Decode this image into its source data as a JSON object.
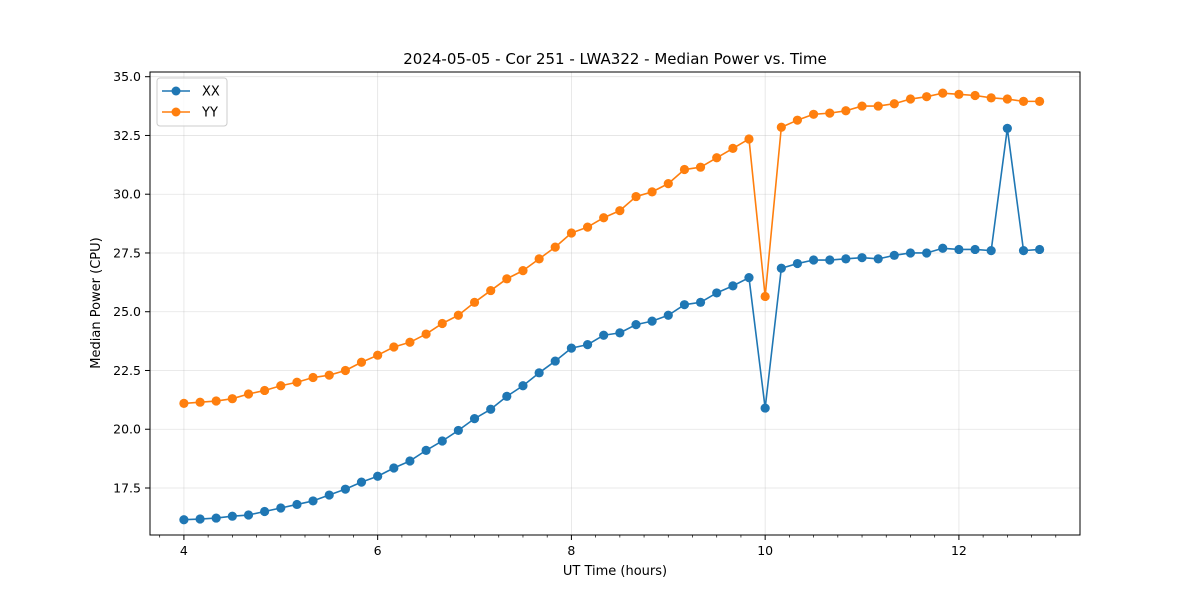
{
  "chart_data": {
    "type": "line",
    "title": "2024-05-05 - Cor 251 - LWA322 - Median Power vs. Time",
    "xlabel": "UT Time (hours)",
    "ylabel": "Median Power (CPU)",
    "xlim": [
      3.65,
      13.25
    ],
    "ylim": [
      15.5,
      35.2
    ],
    "xticks": [
      4,
      6,
      8,
      10,
      12
    ],
    "xtick_labels": [
      "4",
      "6",
      "8",
      "10",
      "12"
    ],
    "yticks": [
      17.5,
      20.0,
      22.5,
      25.0,
      27.5,
      30.0,
      32.5,
      35.0
    ],
    "ytick_labels": [
      "17.5",
      "20.0",
      "22.5",
      "25.0",
      "27.5",
      "30.0",
      "32.5",
      "35.0"
    ],
    "grid": true,
    "legend_position": "top-left",
    "x": [
      4.0,
      4.167,
      4.333,
      4.5,
      4.667,
      4.833,
      5.0,
      5.167,
      5.333,
      5.5,
      5.667,
      5.833,
      6.0,
      6.167,
      6.333,
      6.5,
      6.667,
      6.833,
      7.0,
      7.167,
      7.333,
      7.5,
      7.667,
      7.833,
      8.0,
      8.167,
      8.333,
      8.5,
      8.667,
      8.833,
      9.0,
      9.167,
      9.333,
      9.5,
      9.667,
      9.833,
      10.0,
      10.167,
      10.333,
      10.5,
      10.667,
      10.833,
      11.0,
      11.167,
      11.333,
      11.5,
      11.667,
      11.833,
      12.0,
      12.167,
      12.333,
      12.5,
      12.667,
      12.833
    ],
    "series": [
      {
        "name": "XX",
        "color": "#1f77b4",
        "values": [
          16.15,
          16.18,
          16.22,
          16.3,
          16.35,
          16.5,
          16.65,
          16.8,
          16.95,
          17.2,
          17.45,
          17.75,
          18.0,
          18.35,
          18.65,
          19.1,
          19.5,
          19.95,
          20.45,
          20.85,
          21.4,
          21.85,
          22.4,
          22.9,
          23.45,
          23.6,
          24.0,
          24.1,
          24.45,
          24.6,
          24.85,
          25.3,
          25.4,
          25.8,
          26.1,
          26.45,
          20.9,
          26.85,
          27.05,
          27.2,
          27.2,
          27.25,
          27.3,
          27.25,
          27.4,
          27.5,
          27.5,
          27.7,
          27.65,
          27.65,
          27.6,
          32.8,
          27.6,
          27.65
        ]
      },
      {
        "name": "YY",
        "color": "#ff7f0e",
        "values": [
          21.1,
          21.15,
          21.2,
          21.3,
          21.5,
          21.65,
          21.85,
          22.0,
          22.2,
          22.3,
          22.5,
          22.85,
          23.15,
          23.5,
          23.7,
          24.05,
          24.5,
          24.85,
          25.4,
          25.9,
          26.4,
          26.75,
          27.25,
          27.75,
          28.35,
          28.6,
          29.0,
          29.3,
          29.9,
          30.1,
          30.45,
          31.05,
          31.15,
          31.55,
          31.95,
          32.35,
          25.65,
          32.85,
          33.15,
          33.4,
          33.45,
          33.55,
          33.75,
          33.75,
          33.85,
          34.05,
          34.15,
          34.3,
          34.25,
          34.2,
          34.1,
          34.05,
          33.95,
          33.95
        ]
      }
    ]
  }
}
